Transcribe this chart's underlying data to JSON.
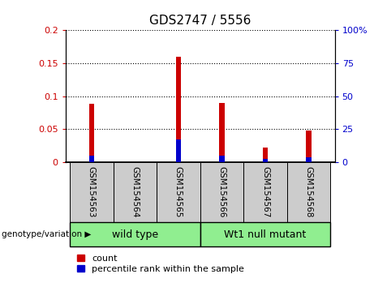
{
  "title": "GDS2747 / 5556",
  "categories": [
    "GSM154563",
    "GSM154564",
    "GSM154565",
    "GSM154566",
    "GSM154567",
    "GSM154568"
  ],
  "red_values": [
    0.088,
    0.0004,
    0.16,
    0.09,
    0.022,
    0.048
  ],
  "blue_values": [
    0.01,
    0.0002,
    0.035,
    0.01,
    0.005,
    0.007
  ],
  "ylim_left": [
    0,
    0.2
  ],
  "ylim_right": [
    0,
    100
  ],
  "yticks_left": [
    0,
    0.05,
    0.1,
    0.15,
    0.2
  ],
  "ytick_labels_left": [
    "0",
    "0.05",
    "0.1",
    "0.15",
    "0.2"
  ],
  "yticks_right": [
    0,
    25,
    50,
    75,
    100
  ],
  "ytick_labels_right": [
    "0",
    "25",
    "50",
    "75",
    "100%"
  ],
  "red_color": "#CC0000",
  "blue_color": "#0000CC",
  "bar_width": 0.12,
  "gray_color": "#CCCCCC",
  "green_color": "#90EE90",
  "legend_label_red": "count",
  "legend_label_blue": "percentile rank within the sample",
  "group_text": "genotype/variation",
  "wild_type_label": "wild type",
  "mutant_label": "Wt1 null mutant"
}
